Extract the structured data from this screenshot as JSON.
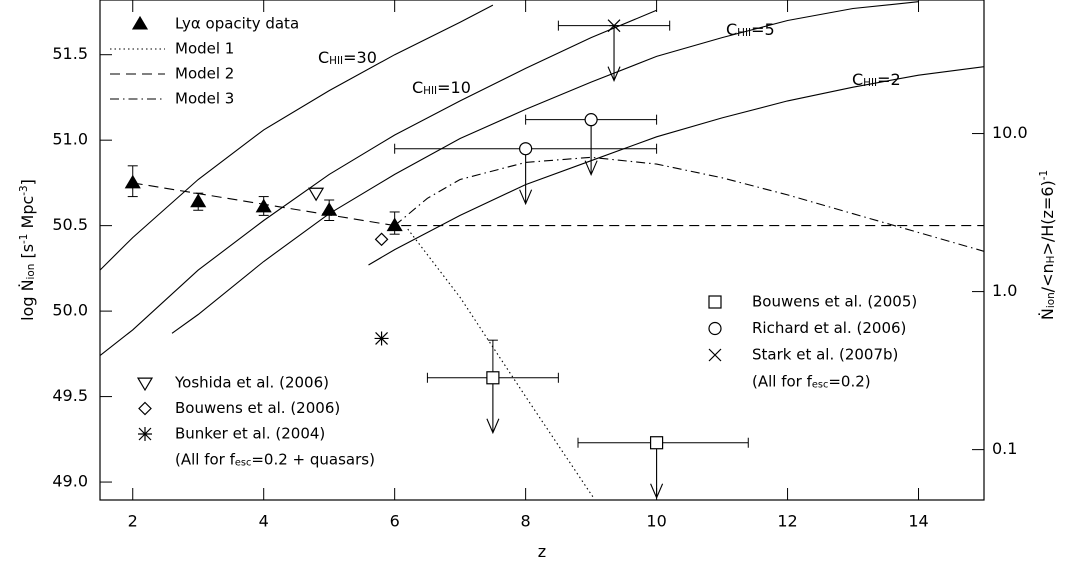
{
  "chart_data": {
    "type": "scatter",
    "xlabel": [
      {
        "text": "z"
      }
    ],
    "ylabel": [
      {
        "text": "log Ṅ"
      },
      {
        "text": "ion",
        "pos": "sub"
      },
      {
        "text": " [s"
      },
      {
        "text": "-1",
        "pos": "sup"
      },
      {
        "text": " Mpc"
      },
      {
        "text": "-3",
        "pos": "sup"
      },
      {
        "text": "]"
      }
    ],
    "y2label": [
      {
        "text": "Ṅ"
      },
      {
        "text": "ion",
        "pos": "sub"
      },
      {
        "text": "/<n"
      },
      {
        "text": "H",
        "pos": "sub"
      },
      {
        "text": ">/H(z=6)"
      },
      {
        "text": "-1",
        "pos": "sup"
      }
    ],
    "xlim": [
      1.5,
      15
    ],
    "xticks": [
      2,
      4,
      6,
      8,
      10,
      12,
      14
    ],
    "ylim": [
      48.895,
      51.82
    ],
    "yticks": [
      {
        "value": 49,
        "label": "49.0"
      },
      49.5,
      {
        "value": 50,
        "label": "50.0"
      },
      50.5,
      {
        "value": 51,
        "label": "51.0"
      },
      51.5
    ],
    "y2lim": [
      0.048,
      70
    ],
    "y2scale": "log",
    "y2ticks": [
      0.1,
      {
        "value": 1,
        "label": "1.0"
      },
      {
        "value": 10,
        "label": "10.0"
      }
    ],
    "curves": [
      {
        "label": [
          {
            "text": "C"
          },
          {
            "text": "HII",
            "pos": "sub"
          },
          {
            "text": "=30"
          }
        ],
        "x": [
          1.5,
          2,
          3,
          4,
          5,
          6,
          7,
          7.5
        ],
        "values": [
          50.24,
          50.43,
          50.77,
          51.06,
          51.29,
          51.5,
          51.69,
          51.79
        ]
      },
      {
        "label": [
          {
            "text": "C"
          },
          {
            "text": "HII",
            "pos": "sub"
          },
          {
            "text": "=10"
          }
        ],
        "x": [
          1.5,
          2,
          3,
          4,
          5,
          6,
          7,
          8,
          9,
          10
        ],
        "values": [
          49.74,
          49.89,
          50.24,
          50.53,
          50.8,
          51.03,
          51.23,
          51.42,
          51.6,
          51.76
        ]
      },
      {
        "label": [
          {
            "text": "C"
          },
          {
            "text": "HII",
            "pos": "sub"
          },
          {
            "text": "=5"
          }
        ],
        "x": [
          2.6,
          3,
          4,
          5,
          6,
          7,
          8,
          9,
          10,
          11,
          12,
          13,
          14
        ],
        "values": [
          49.87,
          49.98,
          50.29,
          50.57,
          50.8,
          51.01,
          51.18,
          51.34,
          51.49,
          51.6,
          51.7,
          51.77,
          51.81
        ]
      },
      {
        "label": [
          {
            "text": "C"
          },
          {
            "text": "HII",
            "pos": "sub"
          },
          {
            "text": "=2"
          }
        ],
        "x": [
          5.6,
          6,
          7,
          8,
          9,
          10,
          11,
          12,
          13,
          14,
          15
        ],
        "values": [
          50.27,
          50.36,
          50.56,
          50.74,
          50.88,
          51.02,
          51.13,
          51.23,
          51.31,
          51.38,
          51.43
        ]
      }
    ],
    "models": [
      {
        "name": "Model 1",
        "dash": "dotted",
        "x": [
          6.2,
          7,
          8,
          9.05
        ],
        "values": [
          50.48,
          50.08,
          49.5,
          48.9
        ]
      },
      {
        "name": "Model 2",
        "dash": "dashed",
        "x": [
          2,
          6,
          15
        ],
        "values": [
          50.75,
          50.5,
          50.5
        ]
      },
      {
        "name": "Model 3",
        "dash": "dashdot",
        "x": [
          6,
          6.5,
          7,
          8,
          9,
          10,
          11,
          12,
          13,
          14,
          15
        ],
        "values": [
          50.5,
          50.66,
          50.77,
          50.87,
          50.9,
          50.86,
          50.78,
          50.68,
          50.57,
          50.46,
          50.35
        ]
      }
    ],
    "series": [
      {
        "name": "Lyα opacity data",
        "marker": "filled-triangle",
        "legend": "upper-left",
        "x": [
          2,
          3,
          4,
          5,
          6
        ],
        "values": [
          50.75,
          50.64,
          50.61,
          50.59,
          50.5
        ],
        "ylo": [
          50.67,
          50.59,
          50.56,
          50.53,
          50.45
        ],
        "yhi": [
          50.85,
          50.69,
          50.67,
          50.65,
          50.58
        ]
      },
      {
        "name": "Yoshida et al. (2006)",
        "marker": "open-down-triangle",
        "legend": "lower-left",
        "x": [
          4.8
        ],
        "values": [
          50.69
        ]
      },
      {
        "name": "Bouwens et al. (2006)",
        "marker": "diamond",
        "legend": "lower-left",
        "x": [
          5.8
        ],
        "values": [
          50.42
        ]
      },
      {
        "name": "Bunker et al. (2004)",
        "marker": "asterisk",
        "legend": "lower-left",
        "x": [
          5.8
        ],
        "values": [
          49.84
        ]
      },
      {
        "name": "Bouwens et al. (2005)",
        "marker": "square",
        "legend": "lower-right",
        "upper_limit": true,
        "x": [
          7.5,
          10
        ],
        "values": [
          49.61,
          49.23
        ],
        "xlo": [
          6.5,
          8.8
        ],
        "xhi": [
          8.5,
          11.4
        ],
        "yhi": [
          49.83,
          49.23
        ]
      },
      {
        "name": "Richard et al. (2006)",
        "marker": "circle",
        "legend": "lower-right",
        "upper_limit": true,
        "x": [
          8,
          9
        ],
        "values": [
          50.95,
          51.12
        ],
        "xlo": [
          6,
          8
        ],
        "xhi": [
          10,
          10
        ],
        "yhi": [
          50.95,
          51.12
        ]
      },
      {
        "name": "Stark et al. (2007b)",
        "marker": "cross",
        "legend": "lower-right",
        "upper_limit": true,
        "x": [
          9.35
        ],
        "values": [
          51.67
        ],
        "xlo": [
          8.5
        ],
        "xhi": [
          10.2
        ],
        "yhi": [
          51.67
        ]
      }
    ],
    "notes": [
      {
        "legend": "lower-left",
        "text": [
          {
            "text": "(All for f"
          },
          {
            "text": "esc",
            "pos": "sub"
          },
          {
            "text": "=0.2 + quasars)"
          }
        ]
      },
      {
        "legend": "lower-right",
        "text": [
          {
            "text": "(All for f"
          },
          {
            "text": "esc",
            "pos": "sub"
          },
          {
            "text": "=0.2)"
          }
        ]
      }
    ]
  }
}
